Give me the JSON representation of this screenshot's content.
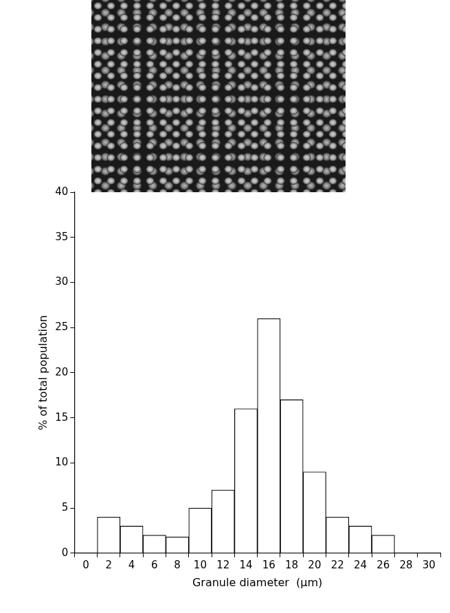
{
  "chart_data": {
    "type": "histogram",
    "x_label": "Granule diameter  (μm)",
    "y_label": "% of total population",
    "bins": [
      1,
      3,
      5,
      7,
      9,
      11,
      13,
      15,
      17,
      19,
      21,
      23,
      25,
      27
    ],
    "values": [
      4,
      3,
      2,
      1.8,
      5,
      7,
      16,
      26,
      17,
      9,
      4,
      3,
      2
    ],
    "color": "#ffffff",
    "xlim": [
      0,
      30
    ],
    "xticks": [
      0,
      2,
      4,
      6,
      8,
      10,
      12,
      14,
      16,
      18,
      20,
      22,
      24,
      26,
      28,
      30
    ],
    "ylim": [
      0,
      40
    ],
    "yticks": [
      0,
      5,
      10,
      15,
      20,
      25,
      30,
      35,
      40
    ],
    "grid": false
  }
}
